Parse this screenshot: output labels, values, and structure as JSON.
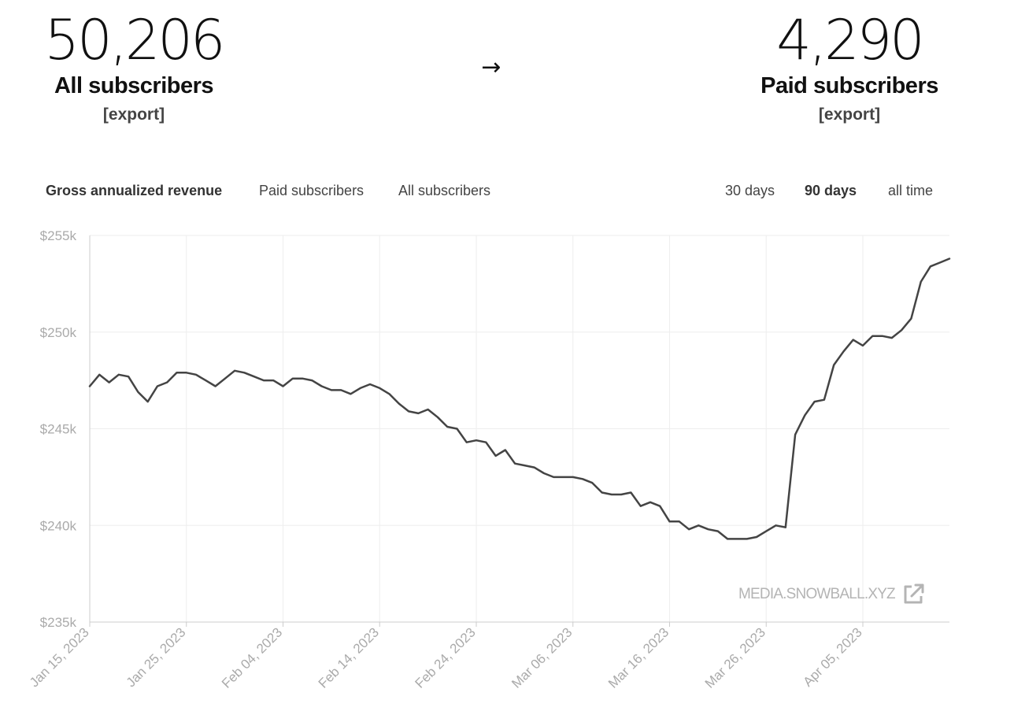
{
  "stats": {
    "all_count": "50,206",
    "all_label": "All subscribers",
    "all_export": "[export]",
    "arrow": "→",
    "paid_count": "4,290",
    "paid_label": "Paid subscribers",
    "paid_export": "[export]"
  },
  "metric_tabs": {
    "revenue": "Gross annualized revenue",
    "paid": "Paid subscribers",
    "all": "All subscribers",
    "active": "revenue"
  },
  "range_tabs": {
    "d30": "30 days",
    "d90": "90 days",
    "all": "all time",
    "active": "d90"
  },
  "watermark": {
    "text": "MEDIA.SNOWBALL.XYZ",
    "icon": "external-link-icon"
  },
  "colors": {
    "line": "#444444",
    "grid": "#eeeeee",
    "axis_text": "#aaaaaa",
    "tab_text": "#444444",
    "watermark": "#b4b4b4"
  },
  "chart_data": {
    "type": "line",
    "title": "",
    "xlabel": "",
    "ylabel": "",
    "ylim": [
      235,
      255
    ],
    "y_unit": "$k",
    "y_ticks": [
      235,
      240,
      245,
      250,
      255
    ],
    "y_tick_labels": [
      "$235k",
      "$240k",
      "$245k",
      "$250k",
      "$255k"
    ],
    "x_range": [
      "2023-01-15",
      "2023-04-13"
    ],
    "x_ticks": [
      "2023-01-15",
      "2023-01-25",
      "2023-02-04",
      "2023-02-14",
      "2023-02-24",
      "2023-03-06",
      "2023-03-16",
      "2023-03-26",
      "2023-04-05"
    ],
    "x_tick_labels": [
      "Jan 15, 2023",
      "Jan 25, 2023",
      "Feb 04, 2023",
      "Feb 14, 2023",
      "Feb 24, 2023",
      "Mar 06, 2023",
      "Mar 16, 2023",
      "Mar 26, 2023",
      "Apr 05, 2023"
    ],
    "grid": true,
    "series": [
      {
        "points": [
          [
            "2023-01-15",
            247.2
          ],
          [
            "2023-01-16",
            247.8
          ],
          [
            "2023-01-17",
            247.4
          ],
          [
            "2023-01-18",
            247.8
          ],
          [
            "2023-01-19",
            247.7
          ],
          [
            "2023-01-20",
            246.9
          ],
          [
            "2023-01-21",
            246.4
          ],
          [
            "2023-01-22",
            247.2
          ],
          [
            "2023-01-23",
            247.4
          ],
          [
            "2023-01-24",
            247.9
          ],
          [
            "2023-01-25",
            247.9
          ],
          [
            "2023-01-26",
            247.8
          ],
          [
            "2023-01-27",
            247.5
          ],
          [
            "2023-01-28",
            247.2
          ],
          [
            "2023-01-29",
            247.6
          ],
          [
            "2023-01-30",
            248.0
          ],
          [
            "2023-01-31",
            247.9
          ],
          [
            "2023-02-01",
            247.7
          ],
          [
            "2023-02-02",
            247.5
          ],
          [
            "2023-02-03",
            247.5
          ],
          [
            "2023-02-04",
            247.2
          ],
          [
            "2023-02-05",
            247.6
          ],
          [
            "2023-02-06",
            247.6
          ],
          [
            "2023-02-07",
            247.5
          ],
          [
            "2023-02-08",
            247.2
          ],
          [
            "2023-02-09",
            247.0
          ],
          [
            "2023-02-10",
            247.0
          ],
          [
            "2023-02-11",
            246.8
          ],
          [
            "2023-02-12",
            247.1
          ],
          [
            "2023-02-13",
            247.3
          ],
          [
            "2023-02-14",
            247.1
          ],
          [
            "2023-02-15",
            246.8
          ],
          [
            "2023-02-16",
            246.3
          ],
          [
            "2023-02-17",
            245.9
          ],
          [
            "2023-02-18",
            245.8
          ],
          [
            "2023-02-19",
            246.0
          ],
          [
            "2023-02-20",
            245.6
          ],
          [
            "2023-02-21",
            245.1
          ],
          [
            "2023-02-22",
            245.0
          ],
          [
            "2023-02-23",
            244.3
          ],
          [
            "2023-02-24",
            244.4
          ],
          [
            "2023-02-25",
            244.3
          ],
          [
            "2023-02-26",
            243.6
          ],
          [
            "2023-02-27",
            243.9
          ],
          [
            "2023-02-28",
            243.2
          ],
          [
            "2023-03-01",
            243.1
          ],
          [
            "2023-03-02",
            243.0
          ],
          [
            "2023-03-03",
            242.7
          ],
          [
            "2023-03-04",
            242.5
          ],
          [
            "2023-03-05",
            242.5
          ],
          [
            "2023-03-06",
            242.5
          ],
          [
            "2023-03-07",
            242.4
          ],
          [
            "2023-03-08",
            242.2
          ],
          [
            "2023-03-09",
            241.7
          ],
          [
            "2023-03-10",
            241.6
          ],
          [
            "2023-03-11",
            241.6
          ],
          [
            "2023-03-12",
            241.7
          ],
          [
            "2023-03-13",
            241.0
          ],
          [
            "2023-03-14",
            241.2
          ],
          [
            "2023-03-15",
            241.0
          ],
          [
            "2023-03-16",
            240.2
          ],
          [
            "2023-03-17",
            240.2
          ],
          [
            "2023-03-18",
            239.8
          ],
          [
            "2023-03-19",
            240.0
          ],
          [
            "2023-03-20",
            239.8
          ],
          [
            "2023-03-21",
            239.7
          ],
          [
            "2023-03-22",
            239.3
          ],
          [
            "2023-03-23",
            239.3
          ],
          [
            "2023-03-24",
            239.3
          ],
          [
            "2023-03-25",
            239.4
          ],
          [
            "2023-03-26",
            239.7
          ],
          [
            "2023-03-27",
            240.0
          ],
          [
            "2023-03-28",
            239.9
          ],
          [
            "2023-03-29",
            244.7
          ],
          [
            "2023-03-30",
            245.7
          ],
          [
            "2023-03-31",
            246.4
          ],
          [
            "2023-04-01",
            246.5
          ],
          [
            "2023-04-02",
            248.3
          ],
          [
            "2023-04-03",
            249.0
          ],
          [
            "2023-04-04",
            249.6
          ],
          [
            "2023-04-05",
            249.3
          ],
          [
            "2023-04-06",
            249.8
          ],
          [
            "2023-04-07",
            249.8
          ],
          [
            "2023-04-08",
            249.7
          ],
          [
            "2023-04-09",
            250.1
          ],
          [
            "2023-04-10",
            250.7
          ],
          [
            "2023-04-11",
            252.6
          ],
          [
            "2023-04-12",
            253.4
          ],
          [
            "2023-04-13",
            253.6
          ],
          [
            "2023-04-14",
            253.8
          ]
        ]
      }
    ]
  }
}
